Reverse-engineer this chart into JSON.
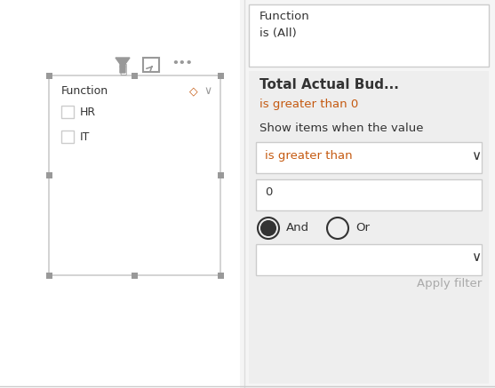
{
  "fig_w": 5.57,
  "fig_h": 4.37,
  "dpi": 100,
  "bg_color": "#f5f5f5",
  "white": "#ffffff",
  "right_panel_bg": "#eeeeee",
  "border_color": "#cccccc",
  "handle_color": "#999999",
  "text_dark": "#333333",
  "text_blue": "#2a6099",
  "text_orange": "#c55a11",
  "text_gray": "#aaaaaa",
  "left_title": "Function",
  "left_items": [
    "HR",
    "IT"
  ],
  "right_top_label1": "Function",
  "right_top_label2": "is (All)",
  "filter_title": "Total Actual Bud...",
  "filter_subtitle": "is greater than 0",
  "filter_show": "Show items when the value",
  "filter_dropdown1": "is greater than",
  "filter_value": "0",
  "filter_and": "And",
  "filter_or": "Or",
  "apply_filter": "Apply filter"
}
